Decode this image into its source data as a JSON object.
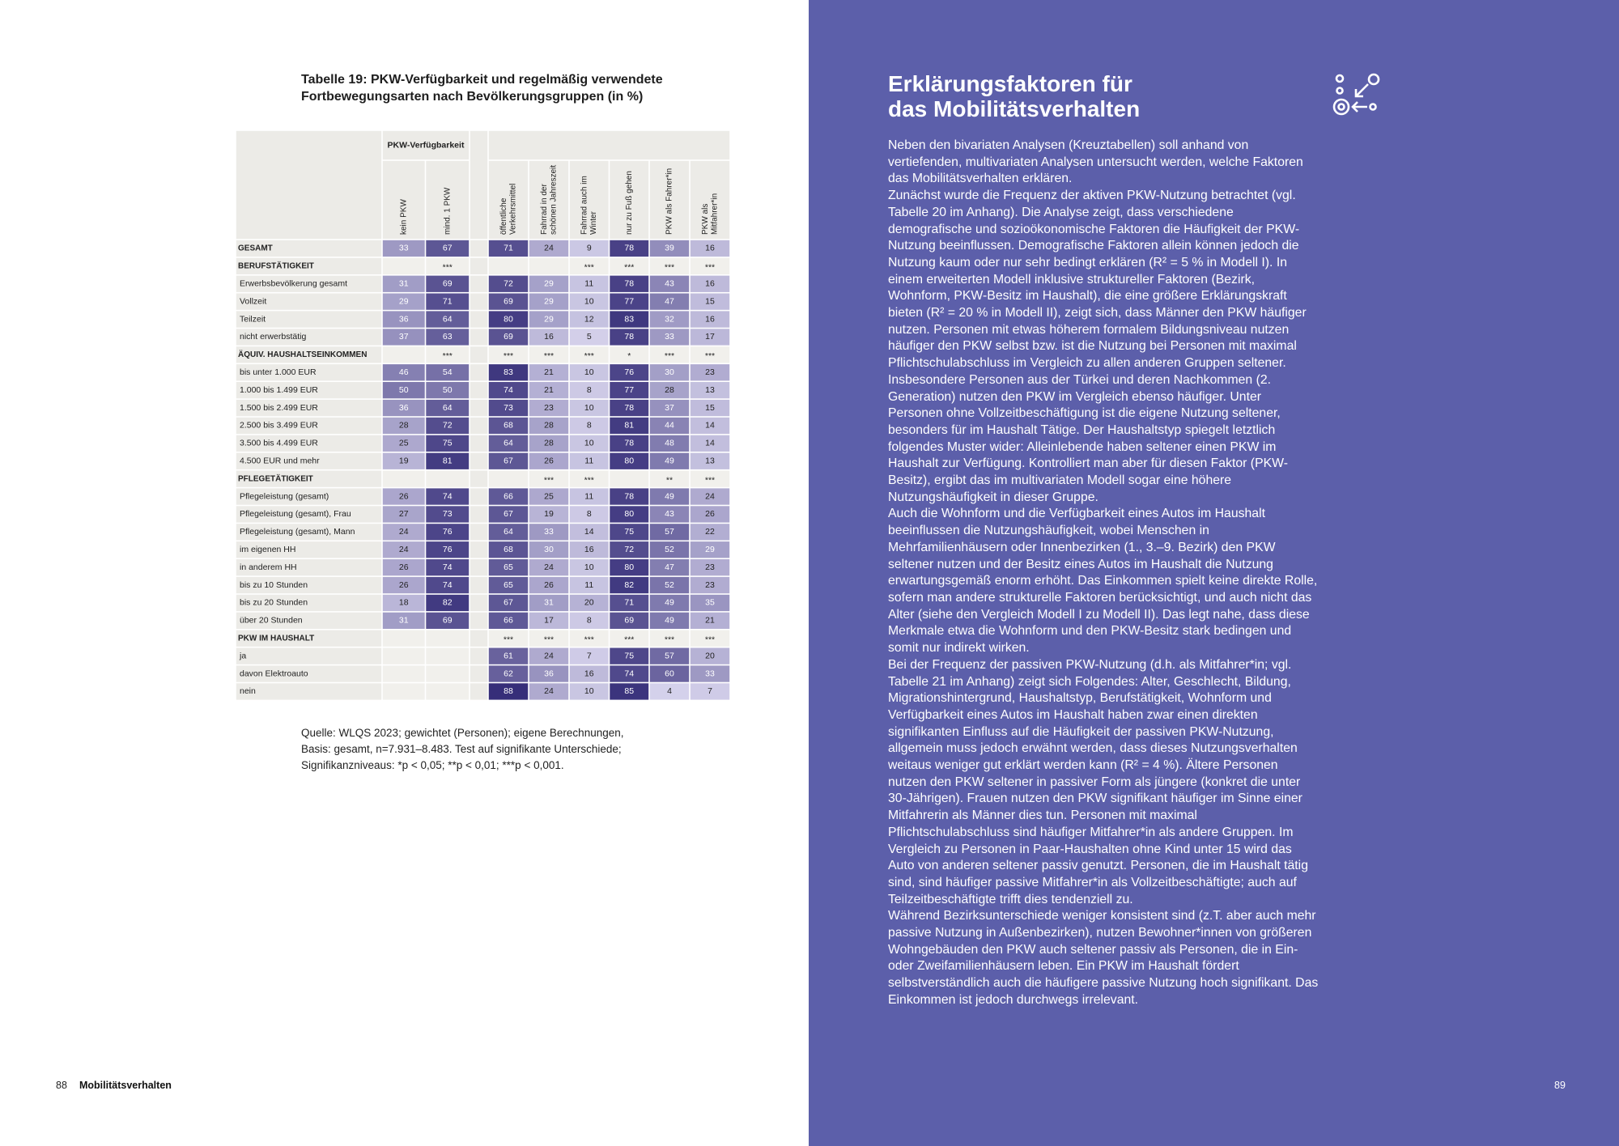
{
  "left": {
    "table_title_lines": [
      "Tabelle 19: PKW-Verfügbarkeit und regelmäßig verwendete",
      "Fortbewegungsarten nach Bevölkerungsgruppen (in %)"
    ],
    "table": {
      "group_header": "PKW-Verfügbarkeit",
      "columns": [
        [
          "kein PKW"
        ],
        [
          "mind. 1 PKW"
        ],
        [
          "öffentliche",
          "Verkehrsmittel"
        ],
        [
          "Fahrrad in der",
          "schönen Jahreszeit"
        ],
        [
          "Fahrrad auch im",
          "Winter"
        ],
        [
          "nur zu Fuß gehen"
        ],
        [
          "PKW als Fahrer*in"
        ],
        [
          "PKW als",
          "Mitfahrer*in"
        ]
      ],
      "rows": [
        {
          "label": "GESAMT",
          "cells": [
            33,
            67,
            71,
            24,
            9,
            78,
            39,
            16
          ]
        },
        {
          "label": "BERUFSTÄTIGKEIT",
          "cells": [
            null,
            "***",
            null,
            null,
            "***",
            "***",
            "***",
            "***"
          ]
        },
        {
          "label": "Erwerbsbevölkerung gesamt",
          "cells": [
            31,
            69,
            72,
            29,
            11,
            78,
            43,
            16
          ]
        },
        {
          "label": "Vollzeit",
          "cells": [
            29,
            71,
            69,
            29,
            10,
            77,
            47,
            15
          ]
        },
        {
          "label": "Teilzeit",
          "cells": [
            36,
            64,
            80,
            29,
            12,
            83,
            32,
            16
          ]
        },
        {
          "label": "nicht erwerbstätig",
          "cells": [
            37,
            63,
            69,
            16,
            5,
            78,
            33,
            17
          ]
        },
        {
          "label": "ÄQUIV. HAUSHALTSEINKOMMEN",
          "cells": [
            null,
            "***",
            "***",
            "***",
            "***",
            "*",
            "***",
            "***"
          ]
        },
        {
          "label": "bis unter 1.000 EUR",
          "cells": [
            46,
            54,
            83,
            21,
            10,
            76,
            30,
            23
          ]
        },
        {
          "label": "1.000 bis 1.499 EUR",
          "cells": [
            50,
            50,
            74,
            21,
            8,
            77,
            28,
            13
          ]
        },
        {
          "label": "1.500 bis 2.499 EUR",
          "cells": [
            36,
            64,
            73,
            23,
            10,
            78,
            37,
            15
          ]
        },
        {
          "label": "2.500 bis 3.499 EUR",
          "cells": [
            28,
            72,
            68,
            28,
            8,
            81,
            44,
            14
          ]
        },
        {
          "label": "3.500 bis 4.499 EUR",
          "cells": [
            25,
            75,
            64,
            28,
            10,
            78,
            48,
            14
          ]
        },
        {
          "label": "4.500 EUR und mehr",
          "cells": [
            19,
            81,
            67,
            26,
            11,
            80,
            49,
            13
          ]
        },
        {
          "label": "PFLEGETÄTIGKEIT",
          "cells": [
            null,
            null,
            null,
            "***",
            "***",
            null,
            "**",
            "***"
          ]
        },
        {
          "label": "Pflegeleistung (gesamt)",
          "cells": [
            26,
            74,
            66,
            25,
            11,
            78,
            49,
            24
          ]
        },
        {
          "label": "Pflegeleistung (gesamt), Frau",
          "cells": [
            27,
            73,
            67,
            19,
            8,
            80,
            43,
            26
          ]
        },
        {
          "label": "Pflegeleistung (gesamt), Mann",
          "cells": [
            24,
            76,
            64,
            33,
            14,
            75,
            57,
            22
          ]
        },
        {
          "label": "im eigenen HH",
          "cells": [
            24,
            76,
            68,
            30,
            16,
            72,
            52,
            29
          ]
        },
        {
          "label": "in anderem HH",
          "cells": [
            26,
            74,
            65,
            24,
            10,
            80,
            47,
            23
          ]
        },
        {
          "label": "bis zu 10 Stunden",
          "cells": [
            26,
            74,
            65,
            26,
            11,
            82,
            52,
            23
          ]
        },
        {
          "label": "bis zu 20 Stunden",
          "cells": [
            18,
            82,
            67,
            31,
            20,
            71,
            49,
            35
          ]
        },
        {
          "label": "über 20 Stunden",
          "cells": [
            31,
            69,
            66,
            17,
            8,
            69,
            49,
            21
          ]
        },
        {
          "label": "PKW IM HAUSHALT",
          "cells": [
            null,
            null,
            "***",
            "***",
            "***",
            "***",
            "***",
            "***"
          ]
        },
        {
          "label": "ja",
          "cells": [
            null,
            null,
            61,
            24,
            7,
            75,
            57,
            20
          ]
        },
        {
          "label": "davon Elektroauto",
          "cells": [
            null,
            null,
            62,
            36,
            16,
            74,
            60,
            33
          ]
        },
        {
          "label": "nein",
          "cells": [
            null,
            null,
            88,
            24,
            10,
            85,
            4,
            7
          ]
        }
      ]
    },
    "source_lines": [
      "Quelle: WLQS 2023; gewichtet (Personen); eigene Berechnungen,",
      "Basis: gesamt, n=7.931–8.483. Test auf signifikante Unterschiede;",
      "Signifikanzniveaus: *p < 0,05; **p < 0,01; ***p < 0,001."
    ],
    "footer": {
      "page": "88",
      "section": "Mobilitätsverhalten"
    }
  },
  "right": {
    "title_lines": [
      "Erklärungsfaktoren für",
      "das Mobilitätsverhalten"
    ],
    "paragraphs": [
      "Neben den bivariaten Analysen (Kreuztabellen) soll anhand von vertiefenden, multivariaten Analysen untersucht werden, welche Faktoren das Mobilitätsverhalten erklären.",
      "Zunächst wurde die Frequenz der aktiven PKW-Nutzung betrachtet (vgl. Tabelle 20 im Anhang). Die Analyse zeigt, dass verschiedene demografische und sozioökonomische Faktoren die Häufigkeit der PKW-Nutzung beeinflussen. Demografische Faktoren allein können jedoch die Nutzung kaum oder nur sehr bedingt erklären (R² = 5 % in Modell I). In einem erweiterten Modell inklusive struktureller Faktoren (Bezirk, Wohnform, PKW-Besitz im Haushalt), die eine größere Erklärungskraft bieten (R² = 20 % in Modell II), zeigt sich, dass Männer den PKW häufiger nutzen. Personen mit etwas höherem formalem Bildungsniveau nutzen häufiger den PKW selbst bzw. ist die Nutzung bei Personen mit maximal Pflichtschulabschluss im Vergleich zu allen anderen Gruppen seltener. Insbesondere Personen aus der Türkei und deren Nachkommen (2. Generation) nutzen den PKW im Vergleich ebenso häufiger. Unter Personen ohne Vollzeitbeschäftigung ist die eigene Nutzung seltener, besonders für im Haushalt Tätige. Der Haushaltstyp spiegelt letztlich folgendes Muster wider: Alleinlebende haben seltener einen PKW im Haushalt zur Verfügung. Kontrolliert man aber für diesen Faktor (PKW-Besitz), ergibt das im multivariaten Modell sogar eine höhere Nutzungshäufigkeit in dieser Gruppe.",
      "Auch die Wohnform und die Verfügbarkeit eines Autos im Haushalt beeinflussen die Nutzungshäufigkeit, wobei Menschen in Mehrfamilienhäusern oder Innenbezirken (1., 3.–9. Bezirk) den PKW seltener nutzen und der Besitz eines Autos im Haushalt die Nutzung erwartungsgemäß enorm erhöht. Das Einkommen spielt keine direkte Rolle, sofern man andere strukturelle Faktoren berücksichtigt, und auch nicht das Alter (siehe den Vergleich Modell I zu Modell II). Das legt nahe, dass diese Merkmale etwa die Wohnform und den PKW-Besitz stark bedingen und somit nur indirekt wirken.",
      "Bei der Frequenz der passiven PKW-Nutzung (d.h. als Mitfahrer*in; vgl. Tabelle 21 im Anhang) zeigt sich Folgendes: Alter, Geschlecht, Bildung, Migrationshintergrund, Haushaltstyp, Berufstätigkeit, Wohnform und Verfügbarkeit eines Autos im Haushalt haben zwar einen direkten signifikanten Einfluss auf die Häufigkeit der passiven PKW-Nutzung, allgemein muss jedoch erwähnt werden, dass dieses Nutzungsverhalten weitaus weniger gut erklärt werden kann (R² = 4 %). Ältere Personen nutzen den PKW seltener in passiver Form als jüngere (konkret die unter 30-Jährigen). Frauen nutzen den PKW signifikant häufiger im Sinne einer Mitfahrerin als Männer dies tun. Personen mit maximal Pflichtschulabschluss sind häufiger Mitfahrer*in als andere Gruppen. Im Vergleich zu Personen in Paar-Haushalten ohne Kind unter 15 wird das Auto von anderen seltener passiv genutzt. Personen, die im Haushalt tätig sind, sind häufiger passive Mitfahrer*in als Vollzeitbeschäftigte; auch auf Teilzeitbeschäftigte trifft dies tendenziell zu.",
      "Während Bezirksunterschiede weniger konsistent sind (z.T. aber auch mehr passive Nutzung in Außenbezirken), nutzen Bewohner*innen von größeren Wohngebäuden den PKW auch seltener passiv als Personen, die in Ein- oder Zweifamilienhäusern leben. Ein PKW im Haushalt fördert selbstverständlich auch die häufigere passive Nutzung hoch signifikant. Das Einkommen ist jedoch durchwegs irrelevant."
    ],
    "page": "89"
  }
}
